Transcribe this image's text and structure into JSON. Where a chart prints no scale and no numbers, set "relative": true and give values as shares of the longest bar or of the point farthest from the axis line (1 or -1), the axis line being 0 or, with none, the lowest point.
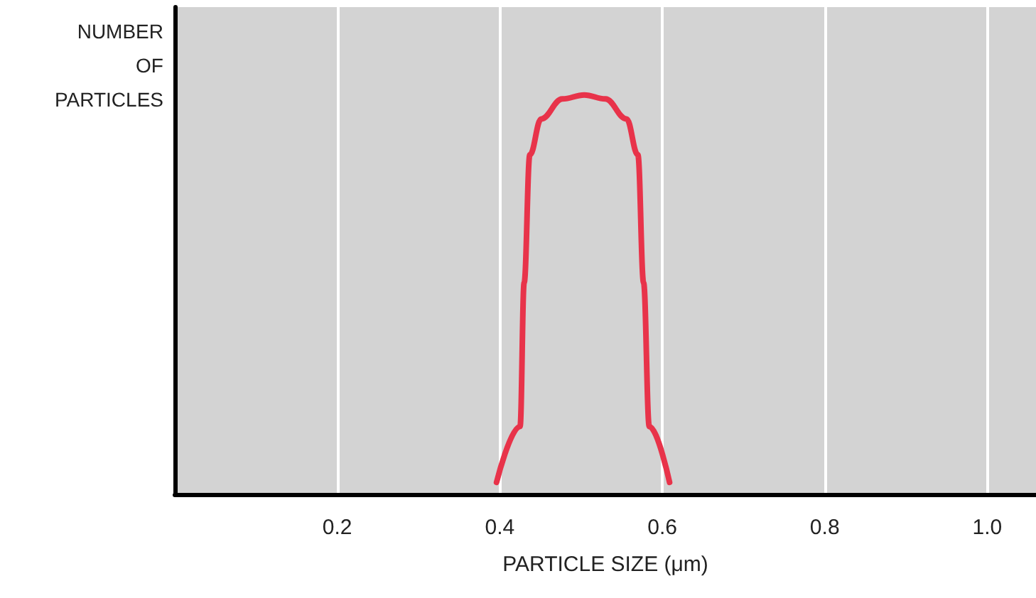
{
  "chart_data": {
    "type": "line",
    "relative": true,
    "xlabel": "PARTICLE SIZE (μm)",
    "ylabel": "NUMBER\nOF\nPARTICLES",
    "xlim": [
      0,
      1.06
    ],
    "xticks": [
      0.2,
      0.4,
      0.6,
      0.8,
      {
        "value": 1,
        "label": "1.0"
      }
    ],
    "grid": "x",
    "marker": "none",
    "series": [
      {
        "color": "#e8334a",
        "x": [
          0.396,
          0.425,
          0.43,
          0.437,
          0.451,
          0.477,
          0.504,
          0.53,
          0.556,
          0.57,
          0.577,
          0.584,
          0.609
        ],
        "values": [
          0.03,
          0.17,
          0.53,
          0.85,
          0.94,
          0.99,
          1,
          0.99,
          0.94,
          0.85,
          0.53,
          0.17,
          0.03
        ]
      }
    ]
  }
}
